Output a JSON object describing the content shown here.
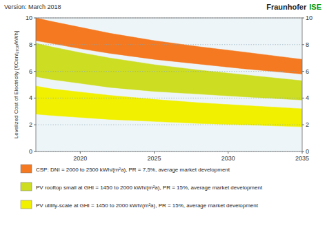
{
  "chart_data": {
    "type": "area",
    "title": "Version: March 2018",
    "annotations": [
      "Fraunhofer",
      "ISE"
    ],
    "ylabel": "Levelized Cost of Electricity [€Cent₂₀₁₀/kWh]",
    "x": [
      2017,
      2018,
      2020,
      2022,
      2025,
      2028,
      2031,
      2035
    ],
    "xlim": [
      2017,
      2035
    ],
    "xticks": [
      2020,
      2025,
      2030,
      2035
    ],
    "ylim": [
      0,
      10
    ],
    "yticks": [
      0,
      2,
      4,
      6,
      8,
      10
    ],
    "y2lim": [
      0,
      10
    ],
    "y2ticks": [
      0,
      2,
      4,
      6,
      8,
      10
    ],
    "grid": "y",
    "legend": "bottom",
    "series": [
      {
        "name": "CSP: DNI = 2000 to 2500 kWh/(m²a), PR = 7,5%, average market development",
        "color": "#f47920",
        "values": [
          10.0,
          9.75,
          9.3,
          8.85,
          8.3,
          7.85,
          7.45,
          6.9
        ],
        "lower": [
          8.3,
          8.1,
          7.7,
          7.35,
          6.9,
          6.55,
          6.2,
          5.8
        ]
      },
      {
        "name": "PV rooftop small at GHI = 1450 to 2000 kWh/(m²a), PR = 15%, average market development",
        "color": "#ccdd22",
        "values": [
          8.1,
          7.85,
          7.4,
          7.0,
          6.5,
          6.1,
          5.75,
          5.3
        ],
        "lower": [
          5.6,
          5.4,
          5.1,
          4.8,
          4.5,
          4.3,
          4.1,
          3.85
        ]
      },
      {
        "name": "PV utility-scale at GHI = 1450 to 2000 kWh/(m²a), PR = 15%, average market development",
        "color": "#f0f000",
        "values": [
          4.9,
          4.7,
          4.45,
          4.2,
          3.9,
          3.65,
          3.45,
          3.2
        ],
        "lower": [
          2.8,
          2.7,
          2.55,
          2.4,
          2.25,
          2.1,
          2.0,
          1.85
        ]
      }
    ]
  }
}
